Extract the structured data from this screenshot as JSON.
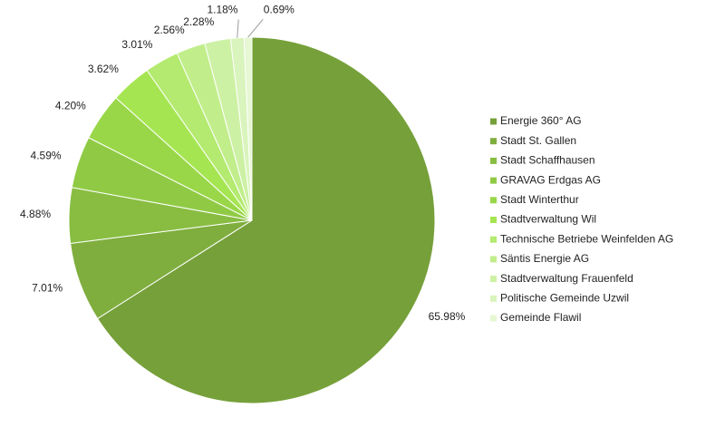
{
  "chart_data": {
    "type": "pie",
    "categories": [
      "Energie 360° AG",
      "Stadt St. Gallen",
      "Stadt Schaffhausen",
      "GRAVAG Erdgas AG",
      "Stadt Winterthur",
      "Stadtverwaltung Wil",
      "Technische Betriebe Weinfelden AG",
      "Säntis Energie AG",
      "Stadtverwaltung Frauenfeld",
      "Politische Gemeinde Uzwil",
      "Gemeinde Flawil"
    ],
    "values": [
      65.98,
      7.01,
      4.88,
      4.59,
      4.2,
      3.62,
      3.01,
      2.56,
      2.28,
      1.18,
      0.69
    ],
    "value_labels": [
      "65.98%",
      "7.01%",
      "4.88%",
      "4.59%",
      "4.20%",
      "3.62%",
      "3.01%",
      "2.56%",
      "2.28%",
      "1.18%",
      "0.69%"
    ],
    "colors": [
      "#76a03a",
      "#7fae3e",
      "#88bd42",
      "#90ca45",
      "#99d748",
      "#a6e552",
      "#b3ea6f",
      "#c1ee8b",
      "#cdf1a4",
      "#d9f4bc",
      "#e6f7d3"
    ],
    "legend": "right"
  }
}
